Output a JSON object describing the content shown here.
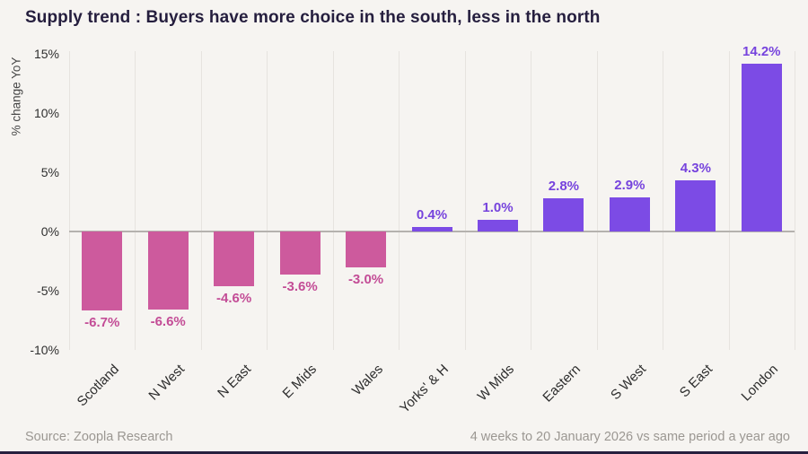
{
  "page": {
    "background": "#f6f4f1",
    "bottom_bar_color": "#27203f"
  },
  "title": "Supply trend : Buyers have more choice in the south, less in the north",
  "footer": {
    "source": "Source: Zoopla Research",
    "period": "4 weeks to 20 January 2026 vs same period a year ago"
  },
  "chart_data": {
    "type": "bar",
    "title": "Supply trend : Buyers have more choice in the south, less in the north",
    "xlabel": "",
    "ylabel": "% change YoY",
    "categories": [
      "Scotland",
      "N West",
      "N East",
      "E Mids",
      "Wales",
      "Yorks' & H",
      "W Mids",
      "Eastern",
      "S West",
      "S East",
      "London"
    ],
    "values": [
      -6.7,
      -6.6,
      -4.6,
      -3.6,
      -3.0,
      0.4,
      1.0,
      2.8,
      2.9,
      4.3,
      14.2
    ],
    "value_labels": [
      "-6.7%",
      "-6.6%",
      "-4.6%",
      "-3.6%",
      "-3.0%",
      "0.4%",
      "1.0%",
      "2.8%",
      "2.9%",
      "4.3%",
      "14.2%"
    ],
    "ylim": [
      -10,
      15
    ],
    "yticks": [
      15,
      10,
      5,
      0,
      -5,
      -10
    ],
    "ytick_labels": [
      "15%",
      "10%",
      "5%",
      "0%",
      "-5%",
      "-10%"
    ],
    "grid": "vertical-only",
    "legend": "none",
    "colors": {
      "positive_bar": "#7c4be5",
      "negative_bar": "#cd5a9d",
      "positive_label": "#7643dd",
      "negative_label": "#c34c96",
      "gridline": "#e6e3df",
      "zero_line": "#b5b2ae"
    }
  }
}
